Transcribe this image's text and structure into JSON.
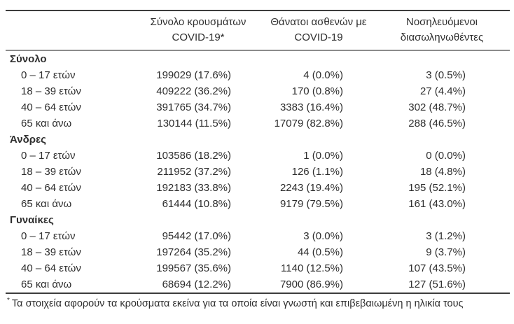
{
  "table": {
    "headers": [
      {
        "line1": "Σύνολο κρουσμάτων",
        "line2": "COVID-19*"
      },
      {
        "line1": "Θάνατοι ασθενών με",
        "line2": "COVID-19"
      },
      {
        "line1": "Νοσηλευόμενοι",
        "line2": "διασωληνωθέντες"
      }
    ],
    "sections": [
      {
        "label": "Σύνολο",
        "rows": [
          {
            "label": "0 – 17 ετών",
            "cases": "199029 (17.6%)",
            "deaths": "4 (0.0%)",
            "intubated": "3 (0.5%)"
          },
          {
            "label": "18 – 39 ετών",
            "cases": "409222 (36.2%)",
            "deaths": "170 (0.8%)",
            "intubated": "27 (4.4%)"
          },
          {
            "label": "40 – 64 ετών",
            "cases": "391765 (34.7%)",
            "deaths": "3383 (16.4%)",
            "intubated": "302 (48.7%)"
          },
          {
            "label": "65 και άνω",
            "cases": "130144 (11.5%)",
            "deaths": "17079 (82.8%)",
            "intubated": "288 (46.5%)"
          }
        ]
      },
      {
        "label": "Άνδρες",
        "rows": [
          {
            "label": "0 – 17 ετών",
            "cases": "103586 (18.2%)",
            "deaths": "1 (0.0%)",
            "intubated": "0 (0.0%)"
          },
          {
            "label": "18 – 39 ετών",
            "cases": "211952 (37.2%)",
            "deaths": "126 (1.1%)",
            "intubated": "18 (4.8%)"
          },
          {
            "label": "40 – 64 ετών",
            "cases": "192183 (33.8%)",
            "deaths": "2243 (19.4%)",
            "intubated": "195 (52.1%)"
          },
          {
            "label": "65 και άνω",
            "cases": "61444 (10.8%)",
            "deaths": "9179 (79.5%)",
            "intubated": "161 (43.0%)"
          }
        ]
      },
      {
        "label": "Γυναίκες",
        "rows": [
          {
            "label": "0 – 17 ετών",
            "cases": "95442 (17.0%)",
            "deaths": "3 (0.0%)",
            "intubated": "3 (1.2%)"
          },
          {
            "label": "18 – 39 ετών",
            "cases": "197264 (35.2%)",
            "deaths": "44 (0.5%)",
            "intubated": "9 (3.7%)"
          },
          {
            "label": "40 – 64 ετών",
            "cases": "199567 (35.6%)",
            "deaths": "1140 (12.5%)",
            "intubated": "107 (43.5%)"
          },
          {
            "label": "65 και άνω",
            "cases": "68694 (12.2%)",
            "deaths": "7900 (86.9%)",
            "intubated": "127 (51.6%)"
          }
        ]
      }
    ],
    "footnote": {
      "marker": "*",
      "text": "Τα στοιχεία αφορούν τα κρούσματα εκείνα για τα οποία είναι γνωστή και επιβεβαιωμένη η ηλικία τους"
    }
  },
  "colors": {
    "text": "#2e2e2e",
    "rule_dark": "#3d3d3d",
    "rule_gray": "#8c8c8c",
    "background": "#ffffff"
  }
}
